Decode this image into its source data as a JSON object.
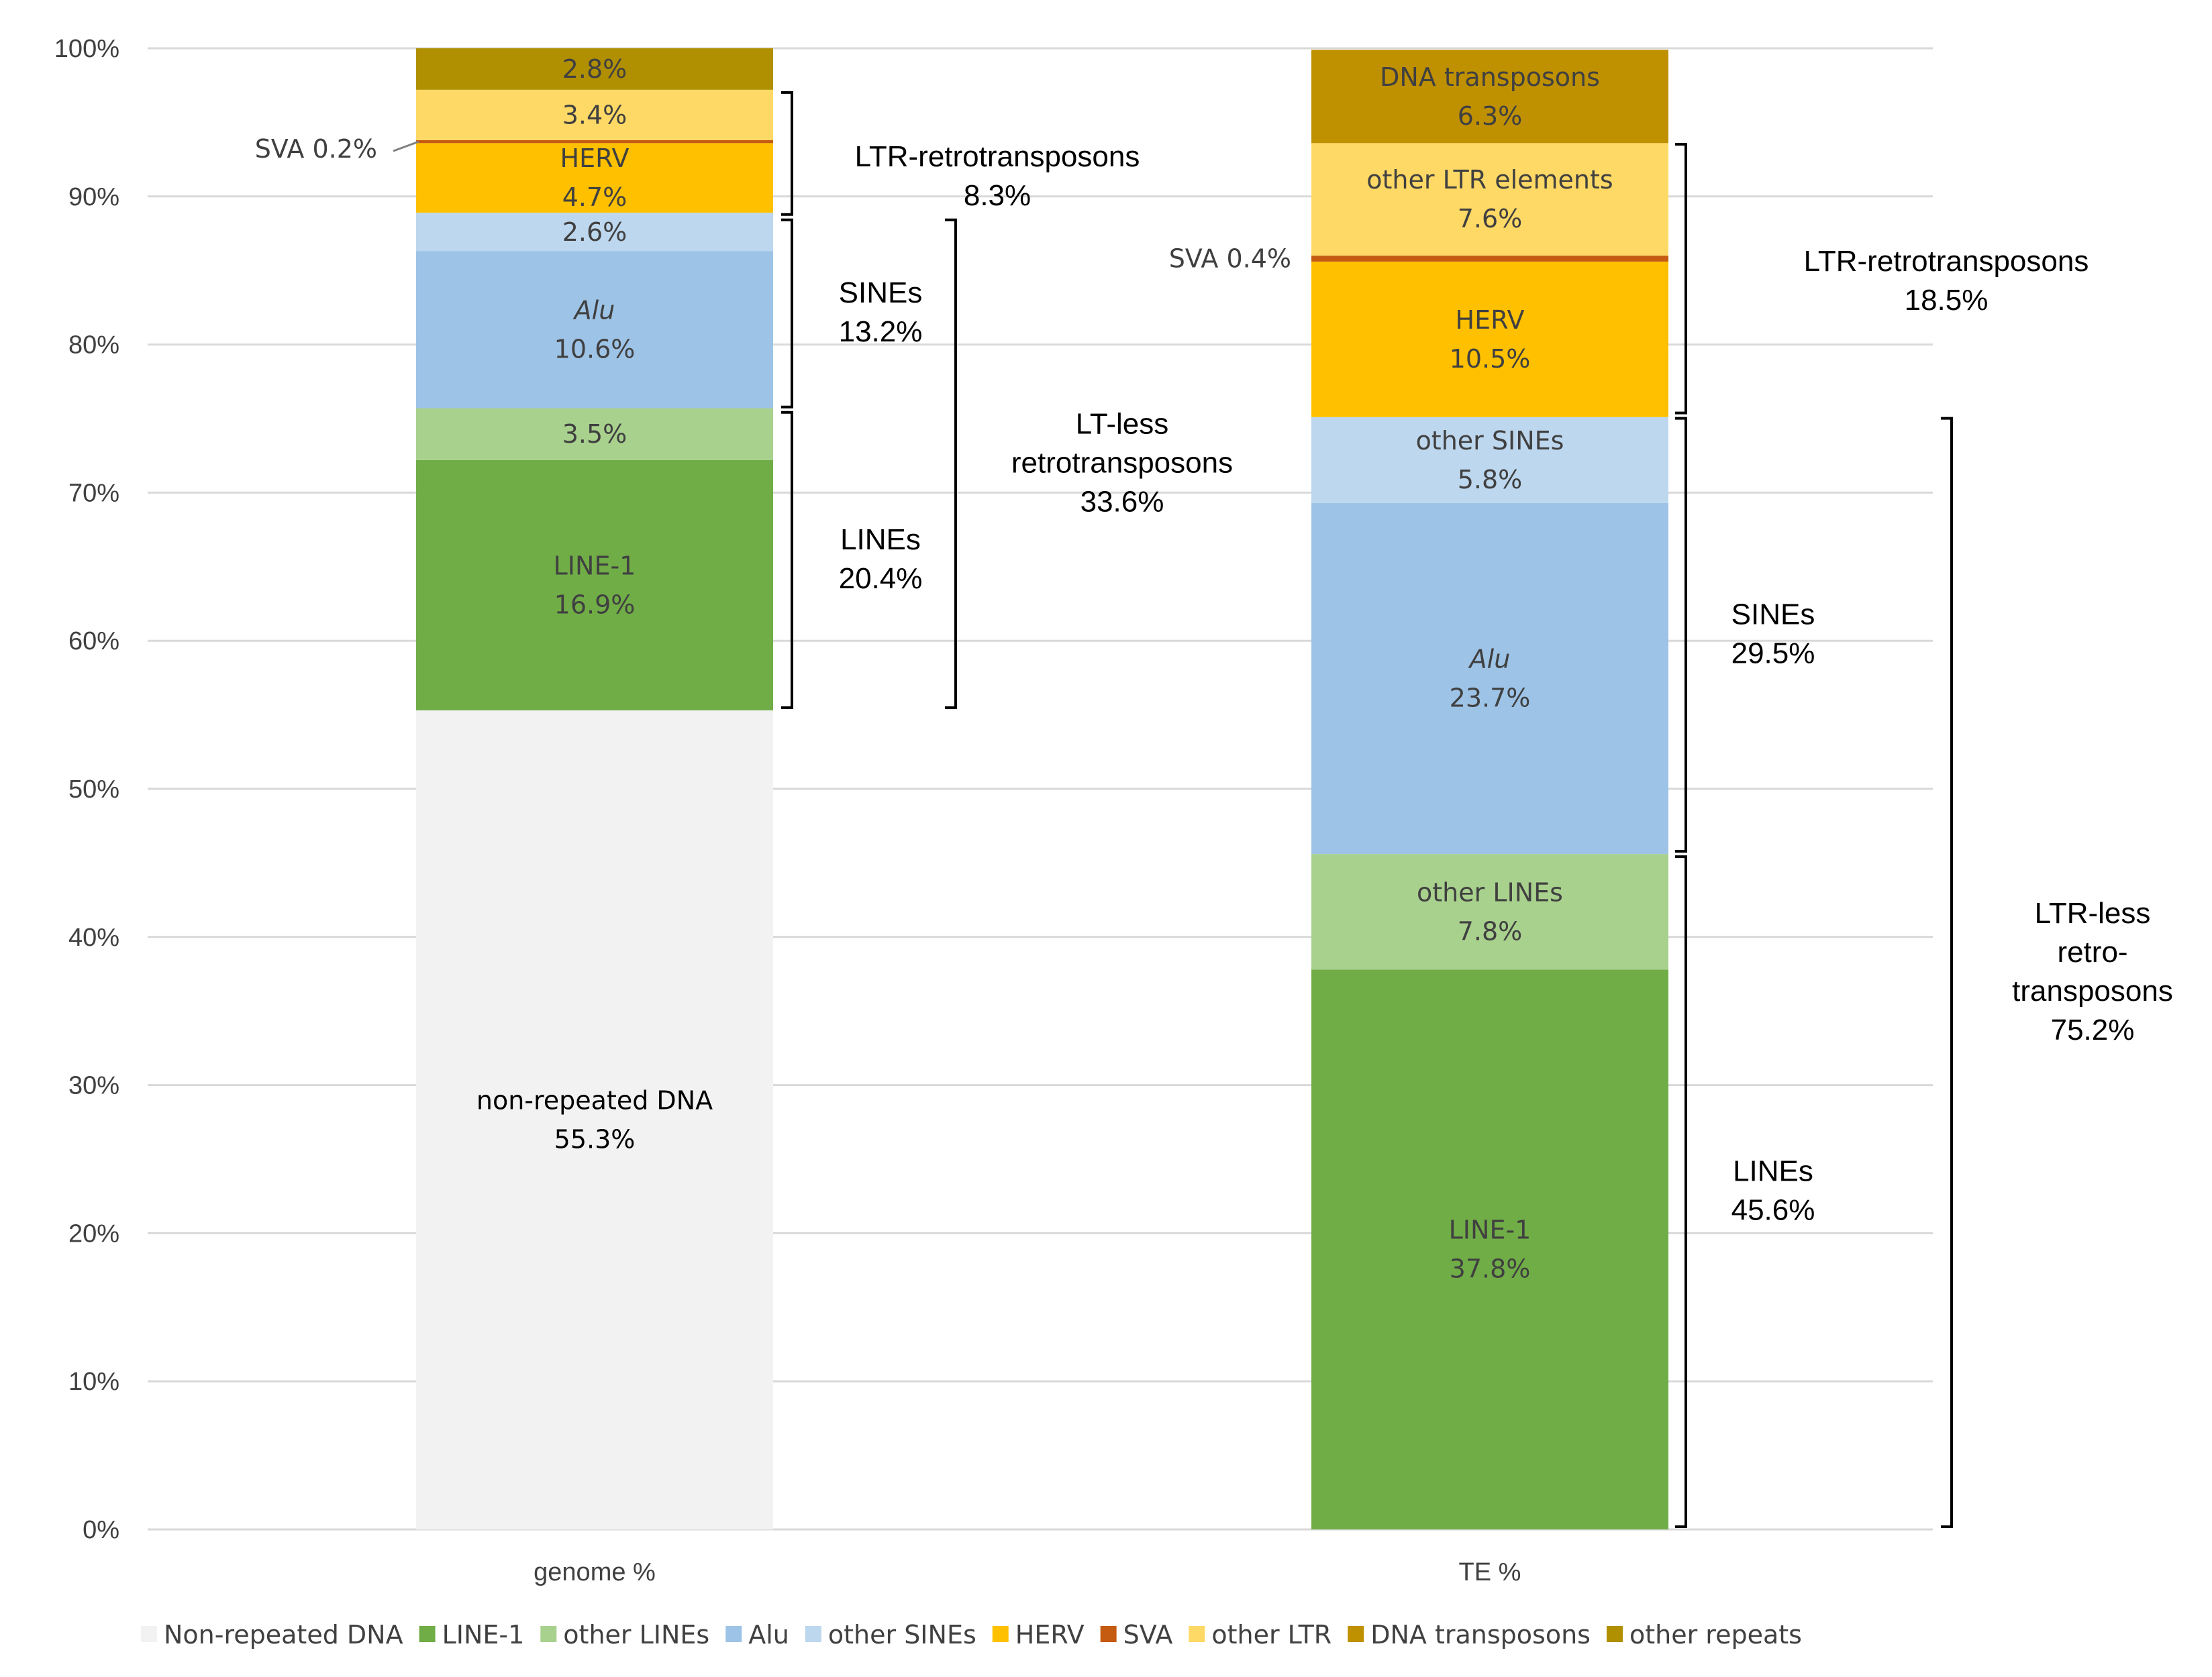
{
  "chart_data": {
    "type": "bar",
    "stacked": true,
    "title": "",
    "xlabel": "",
    "ylabel": "",
    "ylim": [
      0,
      100
    ],
    "y_ticks": [
      "0%",
      "10%",
      "20%",
      "30%",
      "40%",
      "50%",
      "60%",
      "70%",
      "80%",
      "90%",
      "100%"
    ],
    "categories": [
      "genome %",
      "TE %"
    ],
    "legend_position": "bottom",
    "series": [
      {
        "name": "Non-repeated DNA",
        "color": "#f2f2f2",
        "values": [
          55.3,
          0
        ]
      },
      {
        "name": "LINE-1",
        "color": "#70ad47",
        "values": [
          16.9,
          37.8
        ]
      },
      {
        "name": "other LINEs",
        "color": "#a9d18e",
        "values": [
          3.5,
          7.8
        ]
      },
      {
        "name": "Alu",
        "color": "#9dc3e6",
        "values": [
          10.6,
          23.7
        ]
      },
      {
        "name": "other SINEs",
        "color": "#bdd7ee",
        "values": [
          2.6,
          5.8
        ]
      },
      {
        "name": "HERV",
        "color": "#ffc000",
        "values": [
          4.7,
          10.5
        ]
      },
      {
        "name": "SVA",
        "color": "#c55a11",
        "values": [
          0.2,
          0.4
        ]
      },
      {
        "name": "other LTR",
        "color": "#ffd966",
        "values": [
          3.4,
          7.6
        ]
      },
      {
        "name": "DNA transposons",
        "color": "#bf9000",
        "values": [
          0,
          6.3
        ]
      },
      {
        "name": "other repeats",
        "color": "#b08f00",
        "values": [
          2.8,
          0
        ]
      }
    ],
    "segment_labels": [
      [
        {
          "series": 0,
          "lines": [
            "non-repeated DNA",
            "55.3%"
          ],
          "dark": true
        },
        {
          "series": 1,
          "lines": [
            "LINE-1",
            "16.9%"
          ]
        },
        {
          "series": 2,
          "lines": [
            "3.5%"
          ]
        },
        {
          "series": 3,
          "lines": [
            "Alu",
            "10.6%"
          ],
          "italic_first": true
        },
        {
          "series": 4,
          "lines": [
            "2.6%"
          ]
        },
        {
          "series": 5,
          "lines": [
            "HERV",
            "4.7%"
          ]
        },
        {
          "series": 7,
          "lines": [
            "3.4%"
          ]
        },
        {
          "series": 9,
          "lines": [
            "2.8%"
          ]
        }
      ],
      [
        {
          "series": 1,
          "lines": [
            "LINE-1",
            "37.8%"
          ]
        },
        {
          "series": 2,
          "lines": [
            "other LINEs",
            "7.8%"
          ]
        },
        {
          "series": 3,
          "lines": [
            "Alu",
            "23.7%"
          ],
          "italic_first": true
        },
        {
          "series": 4,
          "lines": [
            "other SINEs",
            "5.8%"
          ]
        },
        {
          "series": 5,
          "lines": [
            "HERV",
            "10.5%"
          ]
        },
        {
          "series": 7,
          "lines": [
            "other LTR elements",
            "7.6%"
          ]
        },
        {
          "series": 8,
          "lines": [
            "DNA transposons",
            "6.3%"
          ]
        }
      ]
    ],
    "callouts": [
      "SVA 0.2%",
      "SVA 0.4%"
    ],
    "brackets": [
      {
        "bar": 0,
        "from": 88.6,
        "to": 97.2,
        "level": 1,
        "lines": [
          "LTR-retrotransposons",
          "8.3%"
        ]
      },
      {
        "bar": 0,
        "from": 75.6,
        "to": 88.6,
        "level": 1,
        "lines": [
          "SINEs",
          "13.2%"
        ]
      },
      {
        "bar": 0,
        "from": 55.3,
        "to": 75.6,
        "level": 1,
        "lines": [
          "LINEs",
          "20.4%"
        ]
      },
      {
        "bar": 0,
        "from": 55.3,
        "to": 88.6,
        "level": 2,
        "lines": [
          "LT-less",
          "retrotransposons",
          "33.6%"
        ]
      },
      {
        "bar": 1,
        "from": 75.2,
        "to": 93.7,
        "level": 1,
        "lines": [
          "LTR-retrotransposons",
          "18.5%"
        ]
      },
      {
        "bar": 1,
        "from": 45.6,
        "to": 75.2,
        "level": 1,
        "lines": [
          "SINEs",
          "29.5%"
        ]
      },
      {
        "bar": 1,
        "from": 0,
        "to": 45.6,
        "level": 1,
        "lines": [
          "LINEs",
          "45.6%"
        ]
      },
      {
        "bar": 1,
        "from": 0,
        "to": 75.2,
        "level": 2,
        "lines": [
          "LTR-less",
          "retro-",
          "transposons",
          "75.2%"
        ]
      }
    ]
  }
}
